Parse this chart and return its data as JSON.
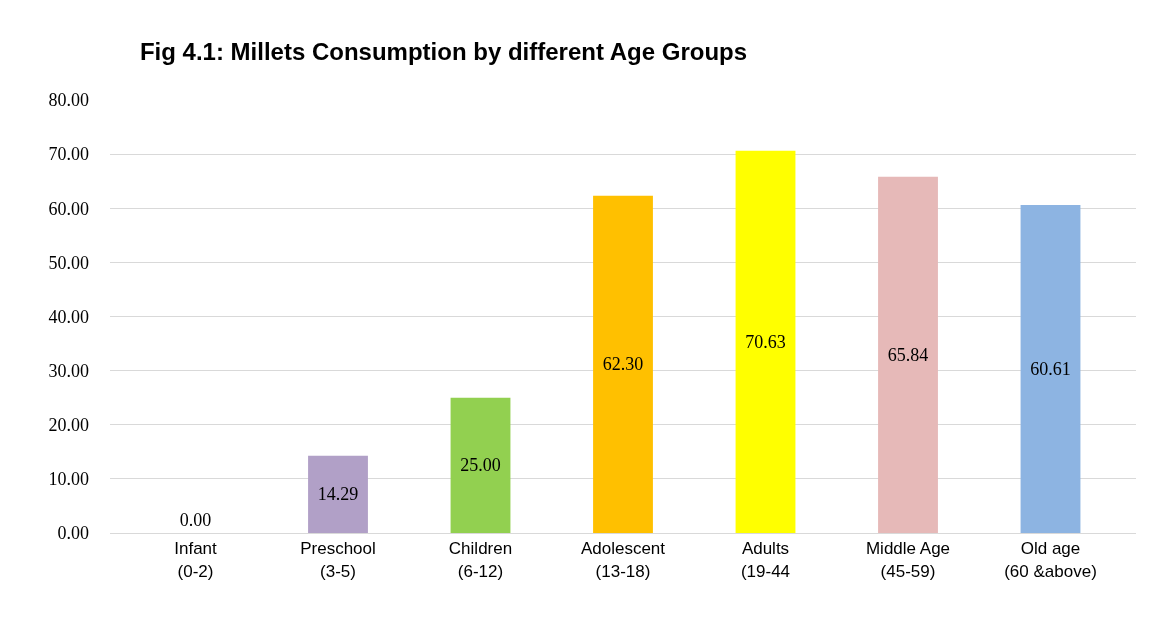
{
  "chart_data": {
    "type": "bar",
    "title": "Fig 4.1: Millets Consumption by different Age Groups",
    "categories": [
      "Infant (0-2)",
      "Preschool (3-5)",
      "Children (6-12)",
      "Adolescent (13-18)",
      "Adults (19-44",
      "Middle Age (45-59)",
      "Old age (60 &above)"
    ],
    "values": [
      0.0,
      14.29,
      25.0,
      62.3,
      70.63,
      65.84,
      60.61
    ],
    "colors": [
      "#a6a6a6",
      "#b1a0c7",
      "#92d050",
      "#ffc000",
      "#ffff00",
      "#e6b9b8",
      "#8db4e2"
    ],
    "value_labels": [
      "0.00",
      "14.29",
      "25.00",
      "62.30",
      "70.63",
      "65.84",
      "60.61"
    ],
    "ylim": [
      0,
      80
    ],
    "yticks": [
      {
        "value": 0,
        "label": "0.00"
      },
      {
        "value": 10,
        "label": "10.00"
      },
      {
        "value": 20,
        "label": "20.00"
      },
      {
        "value": 30,
        "label": "30.00"
      },
      {
        "value": 40,
        "label": "40.00"
      },
      {
        "value": 50,
        "label": "50.00"
      },
      {
        "value": 60,
        "label": "60.00"
      },
      {
        "value": 70,
        "label": "70.00"
      },
      {
        "value": 80,
        "label": "80.00"
      }
    ],
    "grid": "y"
  }
}
